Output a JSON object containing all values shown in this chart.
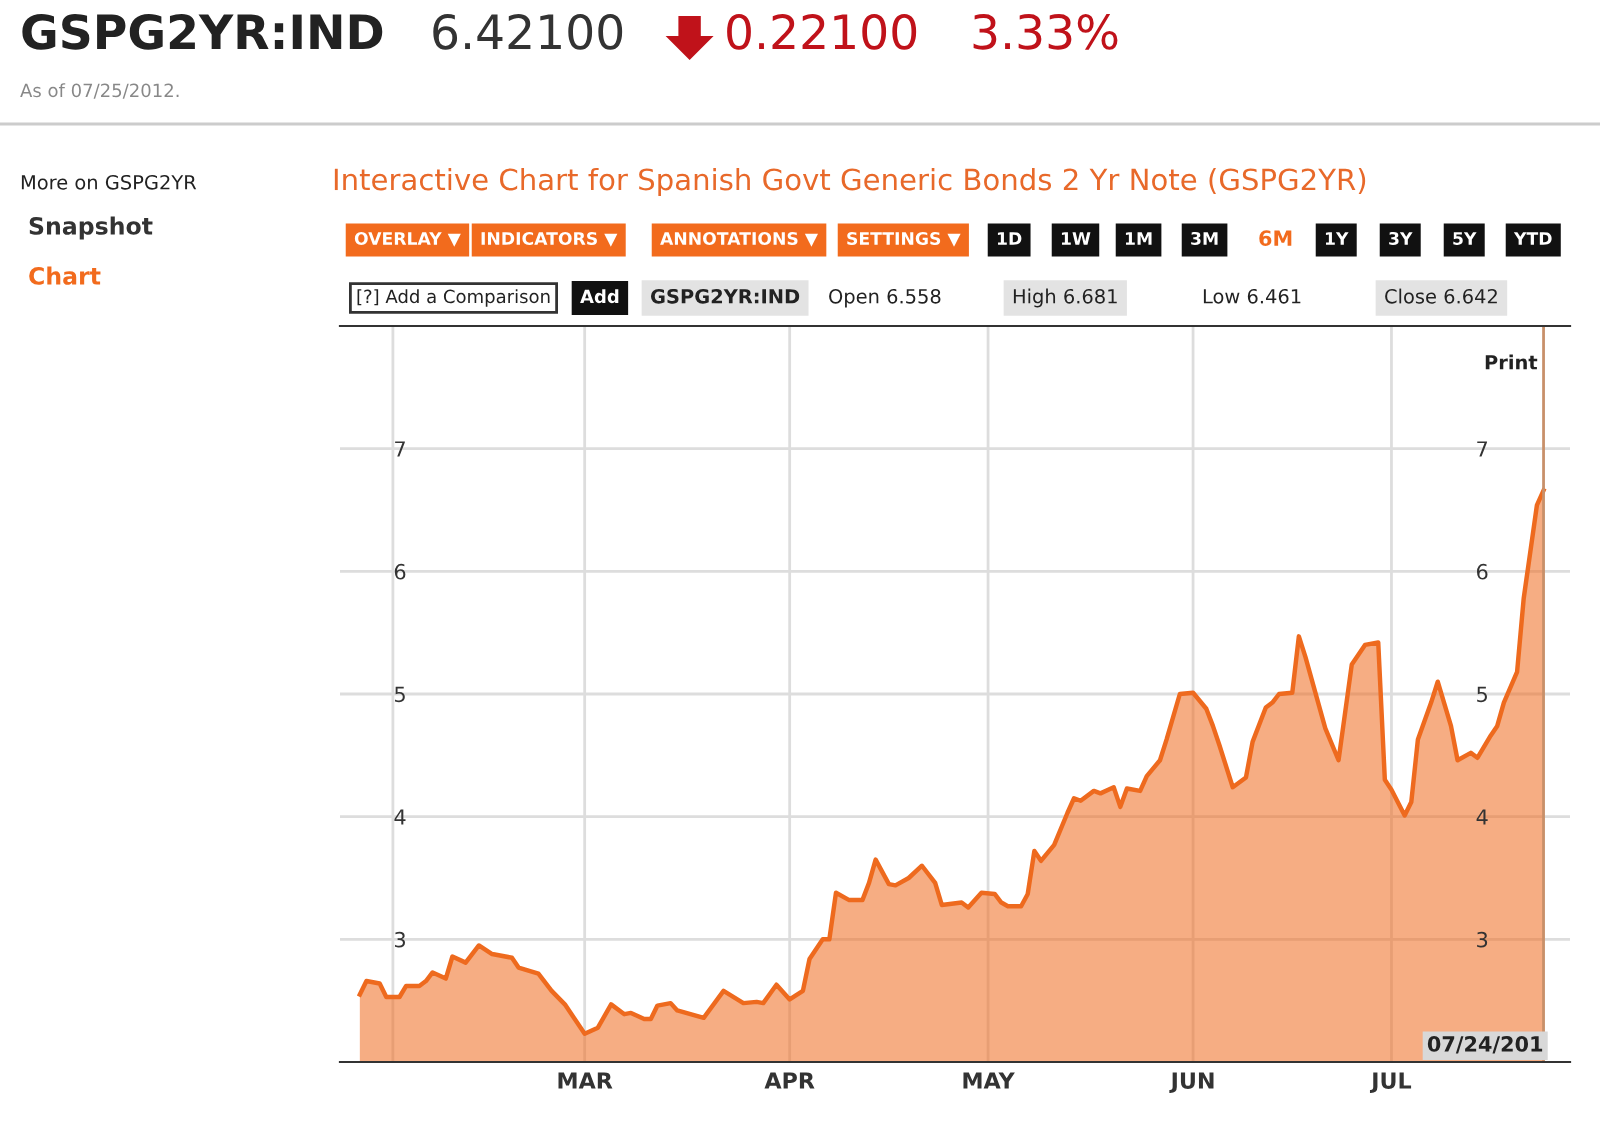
{
  "chart_data": {
    "type": "area",
    "title": "Interactive Chart for Spanish Govt Generic Bonds 2 Yr Note (GSPG2YR)",
    "annotations": [
      "GSPG2YR:IND",
      "6.42100",
      "0.22100",
      "3.33%",
      "As of 07/25/2012.",
      "More on GSPG2YR",
      "Snapshot",
      "Chart",
      "OVERLAY ▼",
      "INDICATORS ▼",
      "ANNOTATIONS ▼",
      "SETTINGS ▼",
      "1D",
      "1W",
      "1M",
      "3M",
      "6M",
      "1Y",
      "3Y",
      "5Y",
      "YTD",
      "[?] Add a Comparison",
      "Add",
      "GSPG2YR:IND",
      "Open 6.558",
      "High 6.681",
      "Low 6.461",
      "Close 6.642",
      "Print"
    ],
    "x": [
      "2012-01-27",
      "2012-01-28",
      "2012-01-30",
      "2012-01-31",
      "2012-02-02",
      "2012-02-03",
      "2012-02-05",
      "2012-02-06",
      "2012-02-07",
      "2012-02-09",
      "2012-02-10",
      "2012-02-12",
      "2012-02-14",
      "2012-02-16",
      "2012-02-19",
      "2012-02-20",
      "2012-02-23",
      "2012-02-25",
      "2012-02-27",
      "2012-03-01",
      "2012-03-03",
      "2012-03-05",
      "2012-03-07",
      "2012-03-08",
      "2012-03-10",
      "2012-03-11",
      "2012-03-12",
      "2012-03-14",
      "2012-03-15",
      "2012-03-19",
      "2012-03-22",
      "2012-03-25",
      "2012-03-27",
      "2012-03-28",
      "2012-03-30",
      "2012-04-01",
      "2012-04-03",
      "2012-04-04",
      "2012-04-06",
      "2012-04-07",
      "2012-04-08",
      "2012-04-10",
      "2012-04-12",
      "2012-04-13",
      "2012-04-14",
      "2012-04-16",
      "2012-04-17",
      "2012-04-19",
      "2012-04-21",
      "2012-04-23",
      "2012-04-24",
      "2012-04-27",
      "2012-04-28",
      "2012-04-30",
      "2012-05-02",
      "2012-05-03",
      "2012-05-04",
      "2012-05-06",
      "2012-05-07",
      "2012-05-08",
      "2012-05-09",
      "2012-05-11",
      "2012-05-13",
      "2012-05-14",
      "2012-05-15",
      "2012-05-17",
      "2012-05-18",
      "2012-05-20",
      "2012-05-21",
      "2012-05-22",
      "2012-05-24",
      "2012-05-25",
      "2012-05-27",
      "2012-05-28",
      "2012-05-30",
      "2012-06-01",
      "2012-06-03",
      "2012-06-04",
      "2012-06-05",
      "2012-06-07",
      "2012-06-09",
      "2012-06-10",
      "2012-06-12",
      "2012-06-13",
      "2012-06-14",
      "2012-06-16",
      "2012-06-17",
      "2012-06-18",
      "2012-06-21",
      "2012-06-23",
      "2012-06-25",
      "2012-06-27",
      "2012-06-29",
      "2012-06-30",
      "2012-07-01",
      "2012-07-03",
      "2012-07-04",
      "2012-07-05",
      "2012-07-07",
      "2012-07-08",
      "2012-07-10",
      "2012-07-11",
      "2012-07-13",
      "2012-07-14",
      "2012-07-16",
      "2012-07-17",
      "2012-07-18",
      "2012-07-20",
      "2012-07-21",
      "2012-07-23",
      "2012-07-24"
    ],
    "series": [
      {
        "color": "#ee6a1e",
        "values": [
          2.55,
          2.66,
          2.64,
          2.53,
          2.53,
          2.62,
          2.62,
          2.66,
          2.73,
          2.68,
          2.86,
          2.81,
          2.95,
          2.88,
          2.85,
          2.77,
          2.72,
          2.58,
          2.47,
          2.23,
          2.28,
          2.47,
          2.39,
          2.4,
          2.35,
          2.35,
          2.46,
          2.48,
          2.42,
          2.36,
          2.58,
          2.48,
          2.49,
          2.48,
          2.63,
          2.51,
          2.58,
          2.84,
          3.0,
          3.0,
          3.38,
          3.32,
          3.32,
          3.46,
          3.65,
          3.45,
          3.44,
          3.5,
          3.6,
          3.46,
          3.28,
          3.3,
          3.26,
          3.38,
          3.37,
          3.3,
          3.27,
          3.27,
          3.37,
          3.72,
          3.64,
          3.77,
          4.03,
          4.15,
          4.13,
          4.21,
          4.19,
          4.24,
          4.08,
          4.23,
          4.21,
          4.33,
          4.46,
          4.63,
          5.0,
          5.01,
          4.88,
          4.74,
          4.58,
          4.24,
          4.32,
          4.61,
          4.89,
          4.93,
          5.0,
          5.01,
          5.47,
          5.3,
          4.72,
          4.46,
          5.24,
          5.4,
          5.42,
          4.3,
          4.22,
          4.01,
          4.12,
          4.63,
          4.93,
          5.1,
          4.74,
          4.46,
          4.52,
          4.48,
          4.66,
          4.74,
          4.93,
          5.18,
          5.78,
          6.54,
          6.66
        ]
      }
    ],
    "xlim": [
      "2012-01-24",
      "2012-07-28"
    ],
    "xticks": [
      {
        "value": "2012-02-01",
        "label": null
      },
      {
        "value": "2012-03-01",
        "label": "MAR"
      },
      {
        "value": "2012-04-01",
        "label": "APR"
      },
      {
        "value": "2012-05-01",
        "label": "MAY"
      },
      {
        "value": "2012-06-01",
        "label": "JUN"
      },
      {
        "value": "2012-07-01",
        "label": "JUL"
      }
    ],
    "ylim": [
      2,
      8
    ],
    "yticks": [
      3,
      4,
      5,
      6,
      7
    ],
    "y2lim": [
      2,
      8
    ],
    "y2ticks": [
      3,
      4,
      5,
      6,
      7
    ],
    "ref_lines": [
      {
        "axis": "x",
        "value": "2012-07-24",
        "label": "07/24/201",
        "color": "#c8906a"
      }
    ],
    "grid": true
  }
}
